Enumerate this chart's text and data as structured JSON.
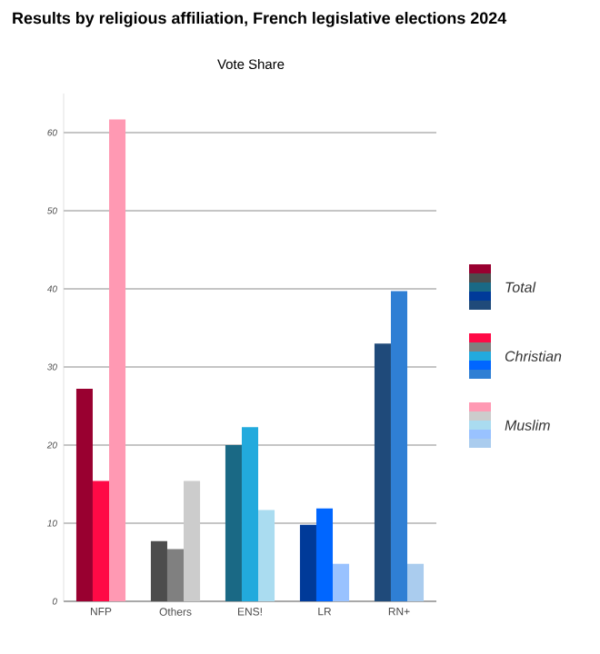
{
  "chart_data": {
    "type": "bar",
    "title": "Results by religious affiliation, French legislative elections 2024",
    "subtitle": "Vote Share",
    "categories": [
      "NFP",
      "Others",
      "ENS!",
      "LR",
      "RN+"
    ],
    "series": [
      {
        "name": "Total",
        "values": [
          27.2,
          7.7,
          20,
          9.8,
          33
        ],
        "colors": [
          "#990030",
          "#4d4d4d",
          "#1a6985",
          "#003a99",
          "#1f4a7a"
        ]
      },
      {
        "name": "Christian",
        "values": [
          15.4,
          6.7,
          22.3,
          11.9,
          39.7
        ],
        "colors": [
          "#ff0a46",
          "#808080",
          "#22aadd",
          "#0066ff",
          "#2f7fd4"
        ]
      },
      {
        "name": "Muslim",
        "values": [
          61.7,
          15.4,
          11.7,
          4.8,
          4.8
        ],
        "colors": [
          "#ff99b3",
          "#cccccc",
          "#aadcf0",
          "#99c2ff",
          "#aaccee"
        ]
      }
    ],
    "ylim": [
      0,
      65
    ],
    "yticks": [
      0,
      10,
      20,
      30,
      40,
      50,
      60
    ],
    "grid": "y",
    "legend": "right"
  }
}
